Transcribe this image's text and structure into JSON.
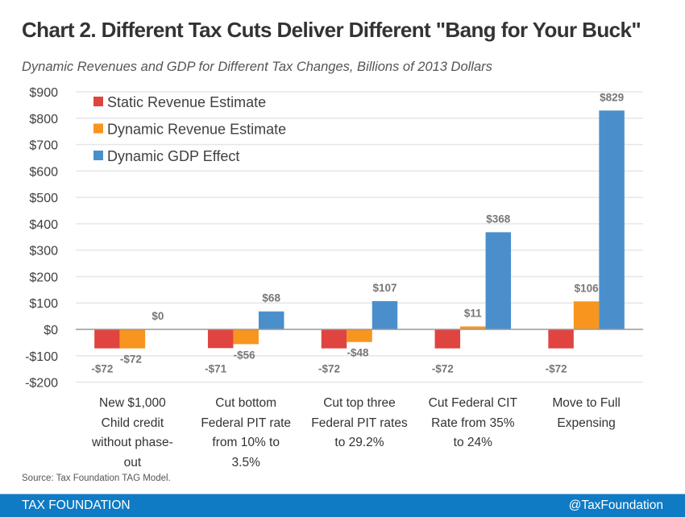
{
  "header": {
    "title": "Chart 2. Different Tax Cuts Deliver Different \"Bang for Your Buck\"",
    "subtitle": "Dynamic Revenues and GDP for Different Tax Changes, Billions of 2013 Dollars"
  },
  "chart_data": {
    "type": "bar",
    "title": "Chart 2. Different Tax Cuts Deliver Different \"Bang for Your Buck\"",
    "subtitle": "Dynamic Revenues and GDP for Different Tax Changes, Billions of 2013 Dollars",
    "xlabel": "",
    "ylabel": "",
    "ylim": [
      -200,
      900
    ],
    "yticks": [
      900,
      800,
      700,
      600,
      500,
      400,
      300,
      200,
      100,
      0,
      -100,
      -200
    ],
    "ytick_labels": [
      "$900",
      "$800",
      "$700",
      "$600",
      "$500",
      "$400",
      "$300",
      "$200",
      "$100",
      "$0",
      "-$100",
      "-$200"
    ],
    "grid": true,
    "legend_position": "top-left",
    "categories": [
      [
        "New $1,000",
        "Child credit",
        "without phase-",
        "out"
      ],
      [
        "Cut bottom",
        "Federal PIT rate",
        "from 10% to",
        "3.5%"
      ],
      [
        "Cut top three",
        "Federal PIT rates",
        "to 29.2%"
      ],
      [
        "Cut Federal CIT",
        "Rate from 35%",
        "to 24%"
      ],
      [
        "Move to Full",
        "Expensing"
      ]
    ],
    "series": [
      {
        "name": "Static Revenue Estimate",
        "color": "#e04440",
        "values": [
          -72,
          -71,
          -72,
          -72,
          -72
        ],
        "labels": [
          "-$72",
          "-$71",
          "-$72",
          "-$72",
          "-$72"
        ]
      },
      {
        "name": "Dynamic Revenue Estimate",
        "color": "#f7951f",
        "values": [
          -72,
          -56,
          -48,
          11,
          106
        ],
        "labels": [
          "-$72",
          "-$56",
          "-$48",
          "$11",
          "$106"
        ]
      },
      {
        "name": "Dynamic GDP Effect",
        "color": "#4a8fcc",
        "values": [
          0,
          68,
          107,
          368,
          829
        ],
        "labels": [
          "$0",
          "$68",
          "$107",
          "$368",
          "$829"
        ]
      }
    ]
  },
  "footer": {
    "source": "Source: Tax Foundation TAG Model.",
    "brand": "TAX FOUNDATION",
    "handle": "@TaxFoundation",
    "bar_color": "#0e7bc4"
  }
}
